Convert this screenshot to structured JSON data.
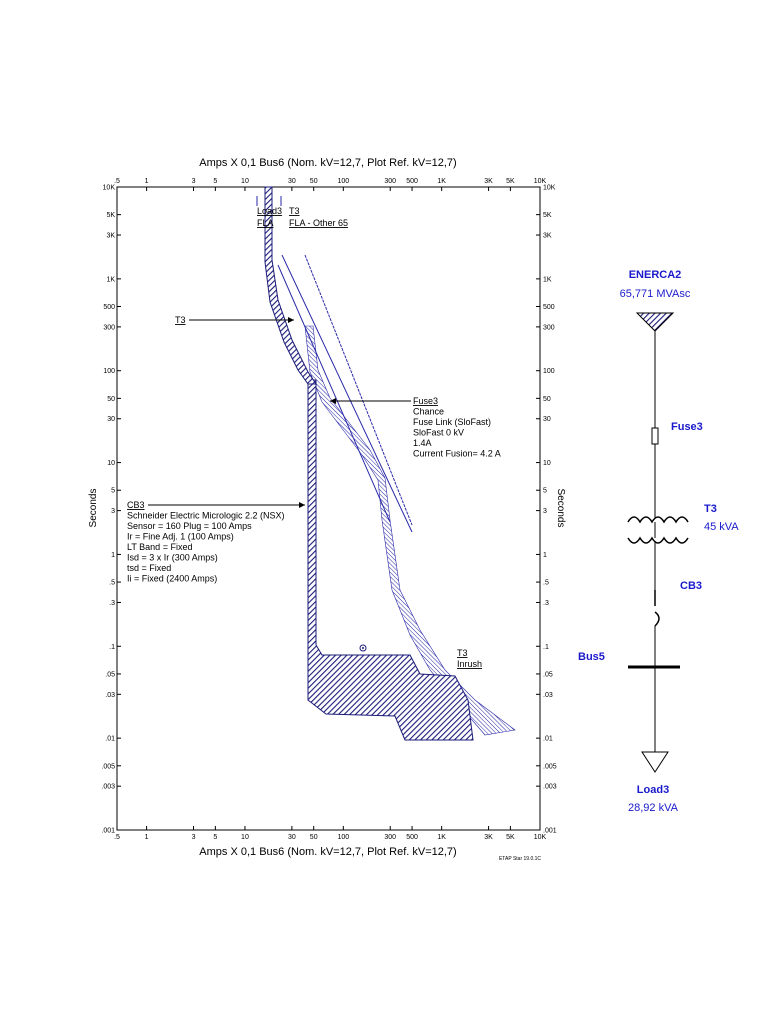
{
  "plot": {
    "title_top": "Amps  X  0,1   Bus6 (Nom. kV=12,7, Plot Ref. kV=12,7)",
    "title_bottom": "Amps  X  0,1   Bus6 (Nom. kV=12,7, Plot Ref. kV=12,7)",
    "y_label_left": "Seconds",
    "y_label_right": "Seconds",
    "xlim": [
      0.5,
      10000
    ],
    "ylim": [
      0.001,
      10000
    ],
    "log_x": true,
    "log_y": true,
    "xticks": [
      {
        "value": 0.5,
        "label": ".5"
      },
      1,
      3,
      5,
      10,
      30,
      50,
      100,
      300,
      500,
      {
        "value": 1000,
        "label": "1K"
      },
      {
        "value": 3000,
        "label": "3K"
      },
      {
        "value": 5000,
        "label": "5K"
      },
      {
        "value": 10000,
        "label": "10K"
      }
    ],
    "yticks": [
      {
        "value": 0.001,
        "label": ".001"
      },
      {
        "value": 0.003,
        "label": ".003"
      },
      {
        "value": 0.005,
        "label": ".005"
      },
      {
        "value": 0.01,
        "label": ".01"
      },
      {
        "value": 0.03,
        "label": ".03"
      },
      {
        "value": 0.05,
        "label": ".05"
      },
      {
        "value": 0.1,
        "label": ".1"
      },
      {
        "value": 0.3,
        "label": ".3"
      },
      {
        "value": 0.5,
        "label": ".5"
      },
      1,
      3,
      5,
      10,
      30,
      50,
      100,
      300,
      500,
      {
        "value": 1000,
        "label": "1K"
      },
      {
        "value": 3000,
        "label": "3K"
      },
      {
        "value": 5000,
        "label": "5K"
      },
      {
        "value": 10000,
        "label": "10K"
      }
    ],
    "annotations": {
      "load3_fla": [
        "Load3",
        "FLA"
      ],
      "t3_fla": [
        "T3",
        "FLA - Other 65"
      ],
      "t3_damage": "T3",
      "fuse3": [
        "Fuse3",
        "Chance",
        "Fuse Link (SloFast)",
        "SloFast  0 kV",
        "1.4A",
        "Current Fusion= 4.2 A"
      ],
      "cb3": [
        "CB3",
        "Schneider Electric  Micrologic 2.2 (NSX)",
        "Sensor = 160 Plug = 100 Amps",
        "Ir = Fine Adj. 1 (100 Amps)",
        "LT Band = Fixed",
        "Isd = 3 x Ir (300 Amps)",
        "tsd = Fixed",
        "Ii = Fixed (2400 Amps)"
      ],
      "t3_inrush": [
        "T3",
        "Inrush"
      ]
    },
    "footer": "ETAP Star 19.0.1C"
  },
  "one_line": {
    "source": {
      "name": "ENERCA2",
      "rating": "65,771 MVAsc"
    },
    "fuse": "Fuse3",
    "transformer": {
      "name": "T3",
      "rating": "45 kVA"
    },
    "breaker": "CB3",
    "bus": "Bus5",
    "load": {
      "name": "Load3",
      "rating": "28,92 kVA"
    }
  }
}
